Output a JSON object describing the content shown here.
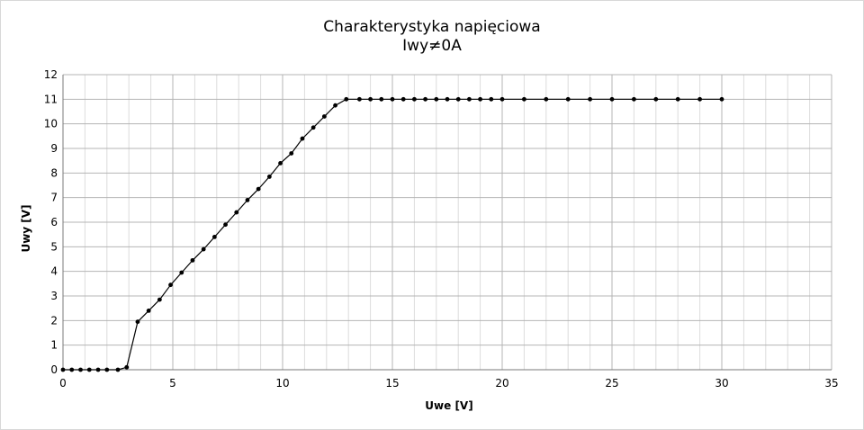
{
  "chart_data": {
    "type": "line",
    "title": "Charakterystyka napięciowa",
    "subtitle": "Iwy≠0A",
    "xlabel": "Uwe [V]",
    "ylabel": "Uwy [V]",
    "xlim": [
      0,
      35
    ],
    "ylim": [
      0,
      12
    ],
    "xticks": [
      0,
      5,
      10,
      15,
      20,
      25,
      30,
      35
    ],
    "yticks": [
      0,
      1,
      2,
      3,
      4,
      5,
      6,
      7,
      8,
      9,
      10,
      11,
      12
    ],
    "x_minor_step": 1,
    "grid": true,
    "legend": "none",
    "line_color": "#000000",
    "grid_major_color": "#b4b4b4",
    "grid_minor_color": "#dcdcdc",
    "series": [
      {
        "x": [
          0,
          0.4,
          0.8,
          1.2,
          1.6,
          2.0,
          2.5,
          2.9,
          3.4,
          3.9,
          4.4,
          4.9,
          5.4,
          5.9,
          6.4,
          6.9,
          7.4,
          7.9,
          8.4,
          8.9,
          9.4,
          9.9,
          10.4,
          10.9,
          11.4,
          11.9,
          12.4,
          12.9,
          13.5,
          14.0,
          14.5,
          15.0,
          15.5,
          16.0,
          16.5,
          17.0,
          17.5,
          18.0,
          18.5,
          19.0,
          19.5,
          20.0,
          21.0,
          22.0,
          23.0,
          24.0,
          25.0,
          26.0,
          27.0,
          28.0,
          29.0,
          30.0
        ],
        "y": [
          0,
          0,
          0,
          0,
          0,
          0,
          0,
          0.1,
          1.95,
          2.4,
          2.85,
          3.45,
          3.95,
          4.45,
          4.9,
          5.4,
          5.9,
          6.4,
          6.9,
          7.35,
          7.85,
          8.4,
          8.8,
          9.4,
          9.85,
          10.3,
          10.75,
          11.0,
          11.0,
          11.0,
          11.0,
          11.0,
          11.0,
          11.0,
          11.0,
          11.0,
          11.0,
          11.0,
          11.0,
          11.0,
          11.0,
          11.0,
          11.0,
          11.0,
          11.0,
          11.0,
          11.0,
          11.0,
          11.0,
          11.0,
          11.0,
          11.0
        ]
      }
    ]
  }
}
